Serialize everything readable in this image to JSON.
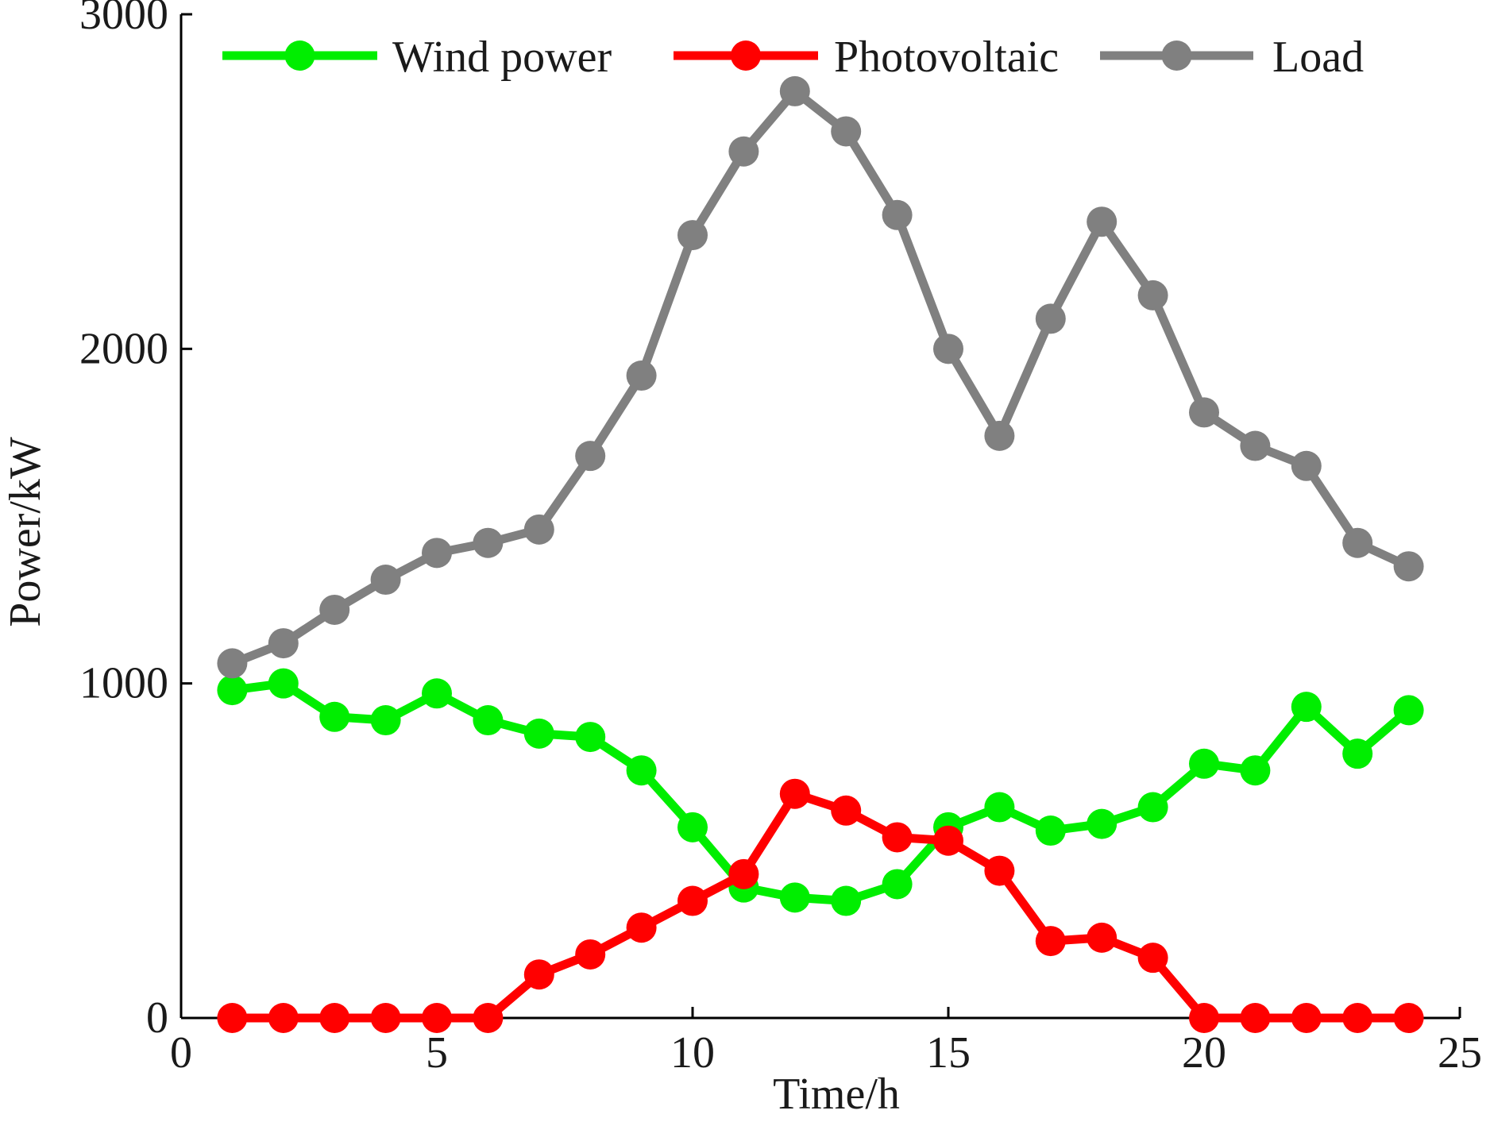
{
  "chart_data": {
    "type": "line",
    "title": "",
    "xlabel": "Time/h",
    "ylabel": "Power/kW",
    "xlim": [
      0,
      25
    ],
    "ylim": [
      0,
      3000
    ],
    "xticks": [
      0,
      5,
      10,
      15,
      20,
      25
    ],
    "xtick_labels": [
      "0",
      "5",
      "10",
      "15",
      "20",
      "25"
    ],
    "yticks": [
      0,
      1000,
      2000,
      3000
    ],
    "ytick_labels": [
      "0",
      "1000",
      "2000",
      "3000"
    ],
    "grid": false,
    "legend_position": "top",
    "x": [
      1,
      2,
      3,
      4,
      5,
      6,
      7,
      8,
      9,
      10,
      11,
      12,
      13,
      14,
      15,
      16,
      17,
      18,
      19,
      20,
      21,
      22,
      23,
      24
    ],
    "series": [
      {
        "name": "Wind power",
        "color": "#00ee00",
        "values": [
          980,
          1000,
          900,
          890,
          970,
          890,
          850,
          840,
          740,
          570,
          390,
          360,
          350,
          400,
          570,
          630,
          560,
          580,
          630,
          760,
          740,
          930,
          790,
          920
        ]
      },
      {
        "name": "Photovoltaic",
        "color": "#ff0000",
        "values": [
          0,
          0,
          0,
          0,
          0,
          0,
          130,
          190,
          270,
          350,
          430,
          670,
          620,
          540,
          530,
          440,
          230,
          240,
          180,
          0,
          0,
          0,
          0,
          0
        ]
      },
      {
        "name": "Load",
        "color": "#808080",
        "values": [
          1060,
          1120,
          1220,
          1310,
          1390,
          1420,
          1460,
          1680,
          1920,
          2340,
          2590,
          2770,
          2650,
          2400,
          2000,
          1740,
          2090,
          2380,
          2160,
          1810,
          1710,
          1650,
          1420,
          1350
        ]
      }
    ]
  }
}
